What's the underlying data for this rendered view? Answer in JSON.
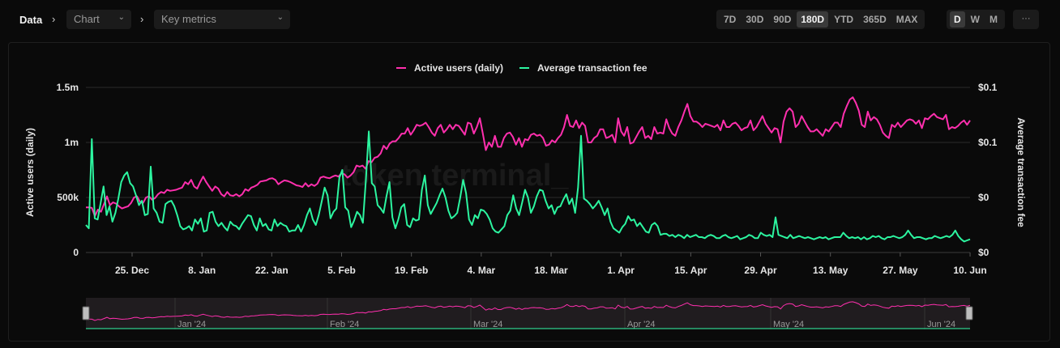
{
  "breadcrumb": {
    "root": "Data",
    "chart_label": "Chart",
    "metric_label": "Key metrics"
  },
  "toolbar": {
    "ranges": [
      "7D",
      "30D",
      "90D",
      "180D",
      "YTD",
      "365D",
      "MAX"
    ],
    "active_range": "180D",
    "granularity": [
      "D",
      "W",
      "M"
    ],
    "active_granularity": "D",
    "more_label": "···"
  },
  "watermark": "token terminal_",
  "colors": {
    "active_users": "#ff2fae",
    "avg_fee": "#2cf5a0",
    "grid": "#2a2a2a",
    "background": "#0a0a0a"
  },
  "chart_data": {
    "type": "line",
    "legend_position": "top-center",
    "grid": true,
    "series": [
      {
        "name": "Active users (daily)",
        "axis": "left",
        "color": "#ff2fae",
        "values": [
          410000,
          410000,
          405000,
          330000,
          390000,
          370000,
          440000,
          510000,
          430000,
          455000,
          445000,
          420000,
          400000,
          410000,
          420000,
          450000,
          500000,
          510000,
          460000,
          450000,
          500000,
          510000,
          480000,
          495000,
          530000,
          550000,
          540000,
          570000,
          560000,
          565000,
          570000,
          580000,
          590000,
          640000,
          620000,
          660000,
          600000,
          580000,
          640000,
          690000,
          640000,
          600000,
          560000,
          600000,
          580000,
          530000,
          510000,
          550000,
          520000,
          515000,
          530000,
          510000,
          530000,
          575000,
          560000,
          590000,
          600000,
          615000,
          645000,
          650000,
          655000,
          670000,
          675000,
          660000,
          620000,
          640000,
          655000,
          650000,
          640000,
          625000,
          610000,
          605000,
          595000,
          630000,
          600000,
          620000,
          605000,
          625000,
          680000,
          690000,
          680000,
          675000,
          690000,
          700000,
          690000,
          720000,
          710000,
          680000,
          700000,
          730000,
          790000,
          780000,
          790000,
          760000,
          830000,
          820000,
          860000,
          870000,
          900000,
          970000,
          940000,
          990000,
          1010000,
          1010000,
          1040000,
          1080000,
          1080000,
          1130000,
          1070000,
          1110000,
          1160000,
          1150000,
          1160000,
          1180000,
          1140000,
          1090000,
          1060000,
          1130000,
          1160000,
          1090000,
          1120000,
          1160000,
          1120000,
          1160000,
          1150000,
          1110000,
          1070000,
          1180000,
          1170000,
          1080000,
          1140000,
          1220000,
          1080000,
          930000,
          1000000,
          960000,
          1060000,
          960000,
          960000,
          1040000,
          1080000,
          1090000,
          1050000,
          980000,
          1040000,
          960000,
          1030000,
          1020000,
          1070000,
          1080000,
          1060000,
          1070000,
          1040000,
          970000,
          980000,
          1020000,
          1000000,
          1040000,
          1070000,
          1140000,
          1250000,
          1150000,
          1140000,
          1200000,
          1130000,
          1180000,
          1150000,
          1000000,
          1000000,
          1040000,
          1060000,
          1120000,
          1120000,
          1040000,
          1050000,
          1070000,
          1000000,
          1220000,
          1100000,
          1060000,
          1140000,
          990000,
          1000000,
          1050000,
          1100000,
          1140000,
          1040000,
          1060000,
          1030000,
          1140000,
          1080000,
          1090000,
          1080000,
          1210000,
          1130000,
          1080000,
          1060000,
          1140000,
          1200000,
          1280000,
          1350000,
          1240000,
          1190000,
          1190000,
          1170000,
          1140000,
          1170000,
          1160000,
          1150000,
          1140000,
          1160000,
          1110000,
          1200000,
          1140000,
          1140000,
          1170000,
          1180000,
          1150000,
          1110000,
          1130000,
          1140000,
          1200000,
          1110000,
          1140000,
          1190000,
          1240000,
          1170000,
          1130000,
          1090000,
          1130000,
          1120000,
          1000000,
          1190000,
          1280000,
          1310000,
          1280000,
          1140000,
          1170000,
          1240000,
          1190000,
          1140000,
          1100000,
          1100000,
          1120000,
          1090000,
          1060000,
          1120000,
          1100000,
          1140000,
          1180000,
          1180000,
          1140000,
          1260000,
          1330000,
          1390000,
          1410000,
          1360000,
          1290000,
          1160000,
          1140000,
          1280000,
          1200000,
          1230000,
          1210000,
          1160000,
          1090000,
          1060000,
          1040000,
          1160000,
          1140000,
          1180000,
          1140000,
          1170000,
          1200000,
          1210000,
          1200000,
          1170000,
          1200000,
          1130000,
          1220000,
          1210000,
          1240000,
          1260000,
          1230000,
          1220000,
          1210000,
          1250000,
          1120000,
          1140000,
          1130000,
          1150000,
          1180000,
          1200000,
          1160000,
          1200000
        ]
      },
      {
        "name": "Average transaction fee",
        "axis": "right",
        "color": "#2cf5a0",
        "values": [
          0.025,
          0.022,
          0.103,
          0.031,
          0.03,
          0.045,
          0.06,
          0.034,
          0.042,
          0.028,
          0.036,
          0.049,
          0.064,
          0.07,
          0.073,
          0.063,
          0.06,
          0.052,
          0.043,
          0.047,
          0.034,
          0.035,
          0.078,
          0.04,
          0.036,
          0.028,
          0.027,
          0.044,
          0.046,
          0.047,
          0.042,
          0.034,
          0.024,
          0.021,
          0.022,
          0.024,
          0.02,
          0.03,
          0.026,
          0.031,
          0.019,
          0.02,
          0.036,
          0.037,
          0.028,
          0.024,
          0.027,
          0.023,
          0.02,
          0.028,
          0.025,
          0.024,
          0.021,
          0.026,
          0.03,
          0.034,
          0.033,
          0.025,
          0.02,
          0.031,
          0.024,
          0.026,
          0.021,
          0.02,
          0.03,
          0.024,
          0.027,
          0.025,
          0.024,
          0.019,
          0.02,
          0.02,
          0.025,
          0.019,
          0.025,
          0.034,
          0.04,
          0.03,
          0.025,
          0.034,
          0.046,
          0.059,
          0.052,
          0.031,
          0.037,
          0.04,
          0.068,
          0.075,
          0.041,
          0.038,
          0.023,
          0.029,
          0.037,
          0.034,
          0.027,
          0.066,
          0.11,
          0.063,
          0.06,
          0.043,
          0.04,
          0.036,
          0.051,
          0.064,
          0.032,
          0.022,
          0.03,
          0.041,
          0.044,
          0.025,
          0.023,
          0.031,
          0.029,
          0.03,
          0.057,
          0.07,
          0.043,
          0.035,
          0.04,
          0.045,
          0.052,
          0.058,
          0.05,
          0.038,
          0.031,
          0.033,
          0.036,
          0.05,
          0.066,
          0.054,
          0.03,
          0.025,
          0.034,
          0.031,
          0.039,
          0.038,
          0.035,
          0.03,
          0.022,
          0.019,
          0.018,
          0.021,
          0.024,
          0.034,
          0.038,
          0.052,
          0.04,
          0.034,
          0.045,
          0.057,
          0.05,
          0.036,
          0.042,
          0.051,
          0.057,
          0.056,
          0.047,
          0.04,
          0.043,
          0.035,
          0.041,
          0.042,
          0.048,
          0.053,
          0.044,
          0.049,
          0.036,
          0.059,
          0.106,
          0.049,
          0.047,
          0.044,
          0.04,
          0.043,
          0.047,
          0.041,
          0.034,
          0.04,
          0.028,
          0.022,
          0.02,
          0.018,
          0.023,
          0.026,
          0.033,
          0.029,
          0.03,
          0.024,
          0.027,
          0.023,
          0.019,
          0.018,
          0.025,
          0.027,
          0.024,
          0.016,
          0.017,
          0.017,
          0.015,
          0.016,
          0.014,
          0.016,
          0.015,
          0.013,
          0.016,
          0.014,
          0.015,
          0.016,
          0.014,
          0.014,
          0.013,
          0.015,
          0.016,
          0.015,
          0.013,
          0.013,
          0.015,
          0.016,
          0.014,
          0.013,
          0.014,
          0.015,
          0.012,
          0.013,
          0.014,
          0.016,
          0.015,
          0.013,
          0.013,
          0.018,
          0.016,
          0.015,
          0.016,
          0.014,
          0.032,
          0.016,
          0.015,
          0.014,
          0.013,
          0.016,
          0.013,
          0.014,
          0.015,
          0.014,
          0.013,
          0.014,
          0.013,
          0.012,
          0.013,
          0.014,
          0.013,
          0.014,
          0.012,
          0.013,
          0.014,
          0.014,
          0.014,
          0.018,
          0.015,
          0.013,
          0.014,
          0.013,
          0.014,
          0.012,
          0.014,
          0.012,
          0.013,
          0.015,
          0.014,
          0.015,
          0.013,
          0.012,
          0.014,
          0.014,
          0.015,
          0.014,
          0.013,
          0.014,
          0.016,
          0.02,
          0.016,
          0.013,
          0.014,
          0.014,
          0.013,
          0.012,
          0.013,
          0.013,
          0.015,
          0.014,
          0.013,
          0.014,
          0.015,
          0.014,
          0.016,
          0.02,
          0.015,
          0.012,
          0.01,
          0.011,
          0.012
        ]
      }
    ],
    "left_axis": {
      "label": "Active users (daily)",
      "min": 0,
      "max": 1500000,
      "ticks": [
        {
          "value": 0,
          "label": "0"
        },
        {
          "value": 500000,
          "label": "500k"
        },
        {
          "value": 1000000,
          "label": "1m"
        },
        {
          "value": 1500000,
          "label": "1.5m"
        }
      ]
    },
    "right_axis": {
      "label": "Average transaction fee",
      "min": 0,
      "max": 0.15,
      "ticks": [
        {
          "value": 0,
          "label": "$0"
        },
        {
          "value": 0.05,
          "label": "$0"
        },
        {
          "value": 0.1,
          "label": "$0.1"
        },
        {
          "value": 0.15,
          "label": "$0.1"
        }
      ]
    },
    "x_ticks": [
      "25. Dec",
      "8. Jan",
      "22. Jan",
      "5. Feb",
      "19. Feb",
      "4. Mar",
      "18. Mar",
      "1. Apr",
      "15. Apr",
      "29. Apr",
      "13. May",
      "27. May",
      "10. Jun"
    ],
    "navigator_months": [
      "Jan '24",
      "Feb '24",
      "Mar '24",
      "Apr '24",
      "May '24",
      "Jun '24"
    ]
  }
}
